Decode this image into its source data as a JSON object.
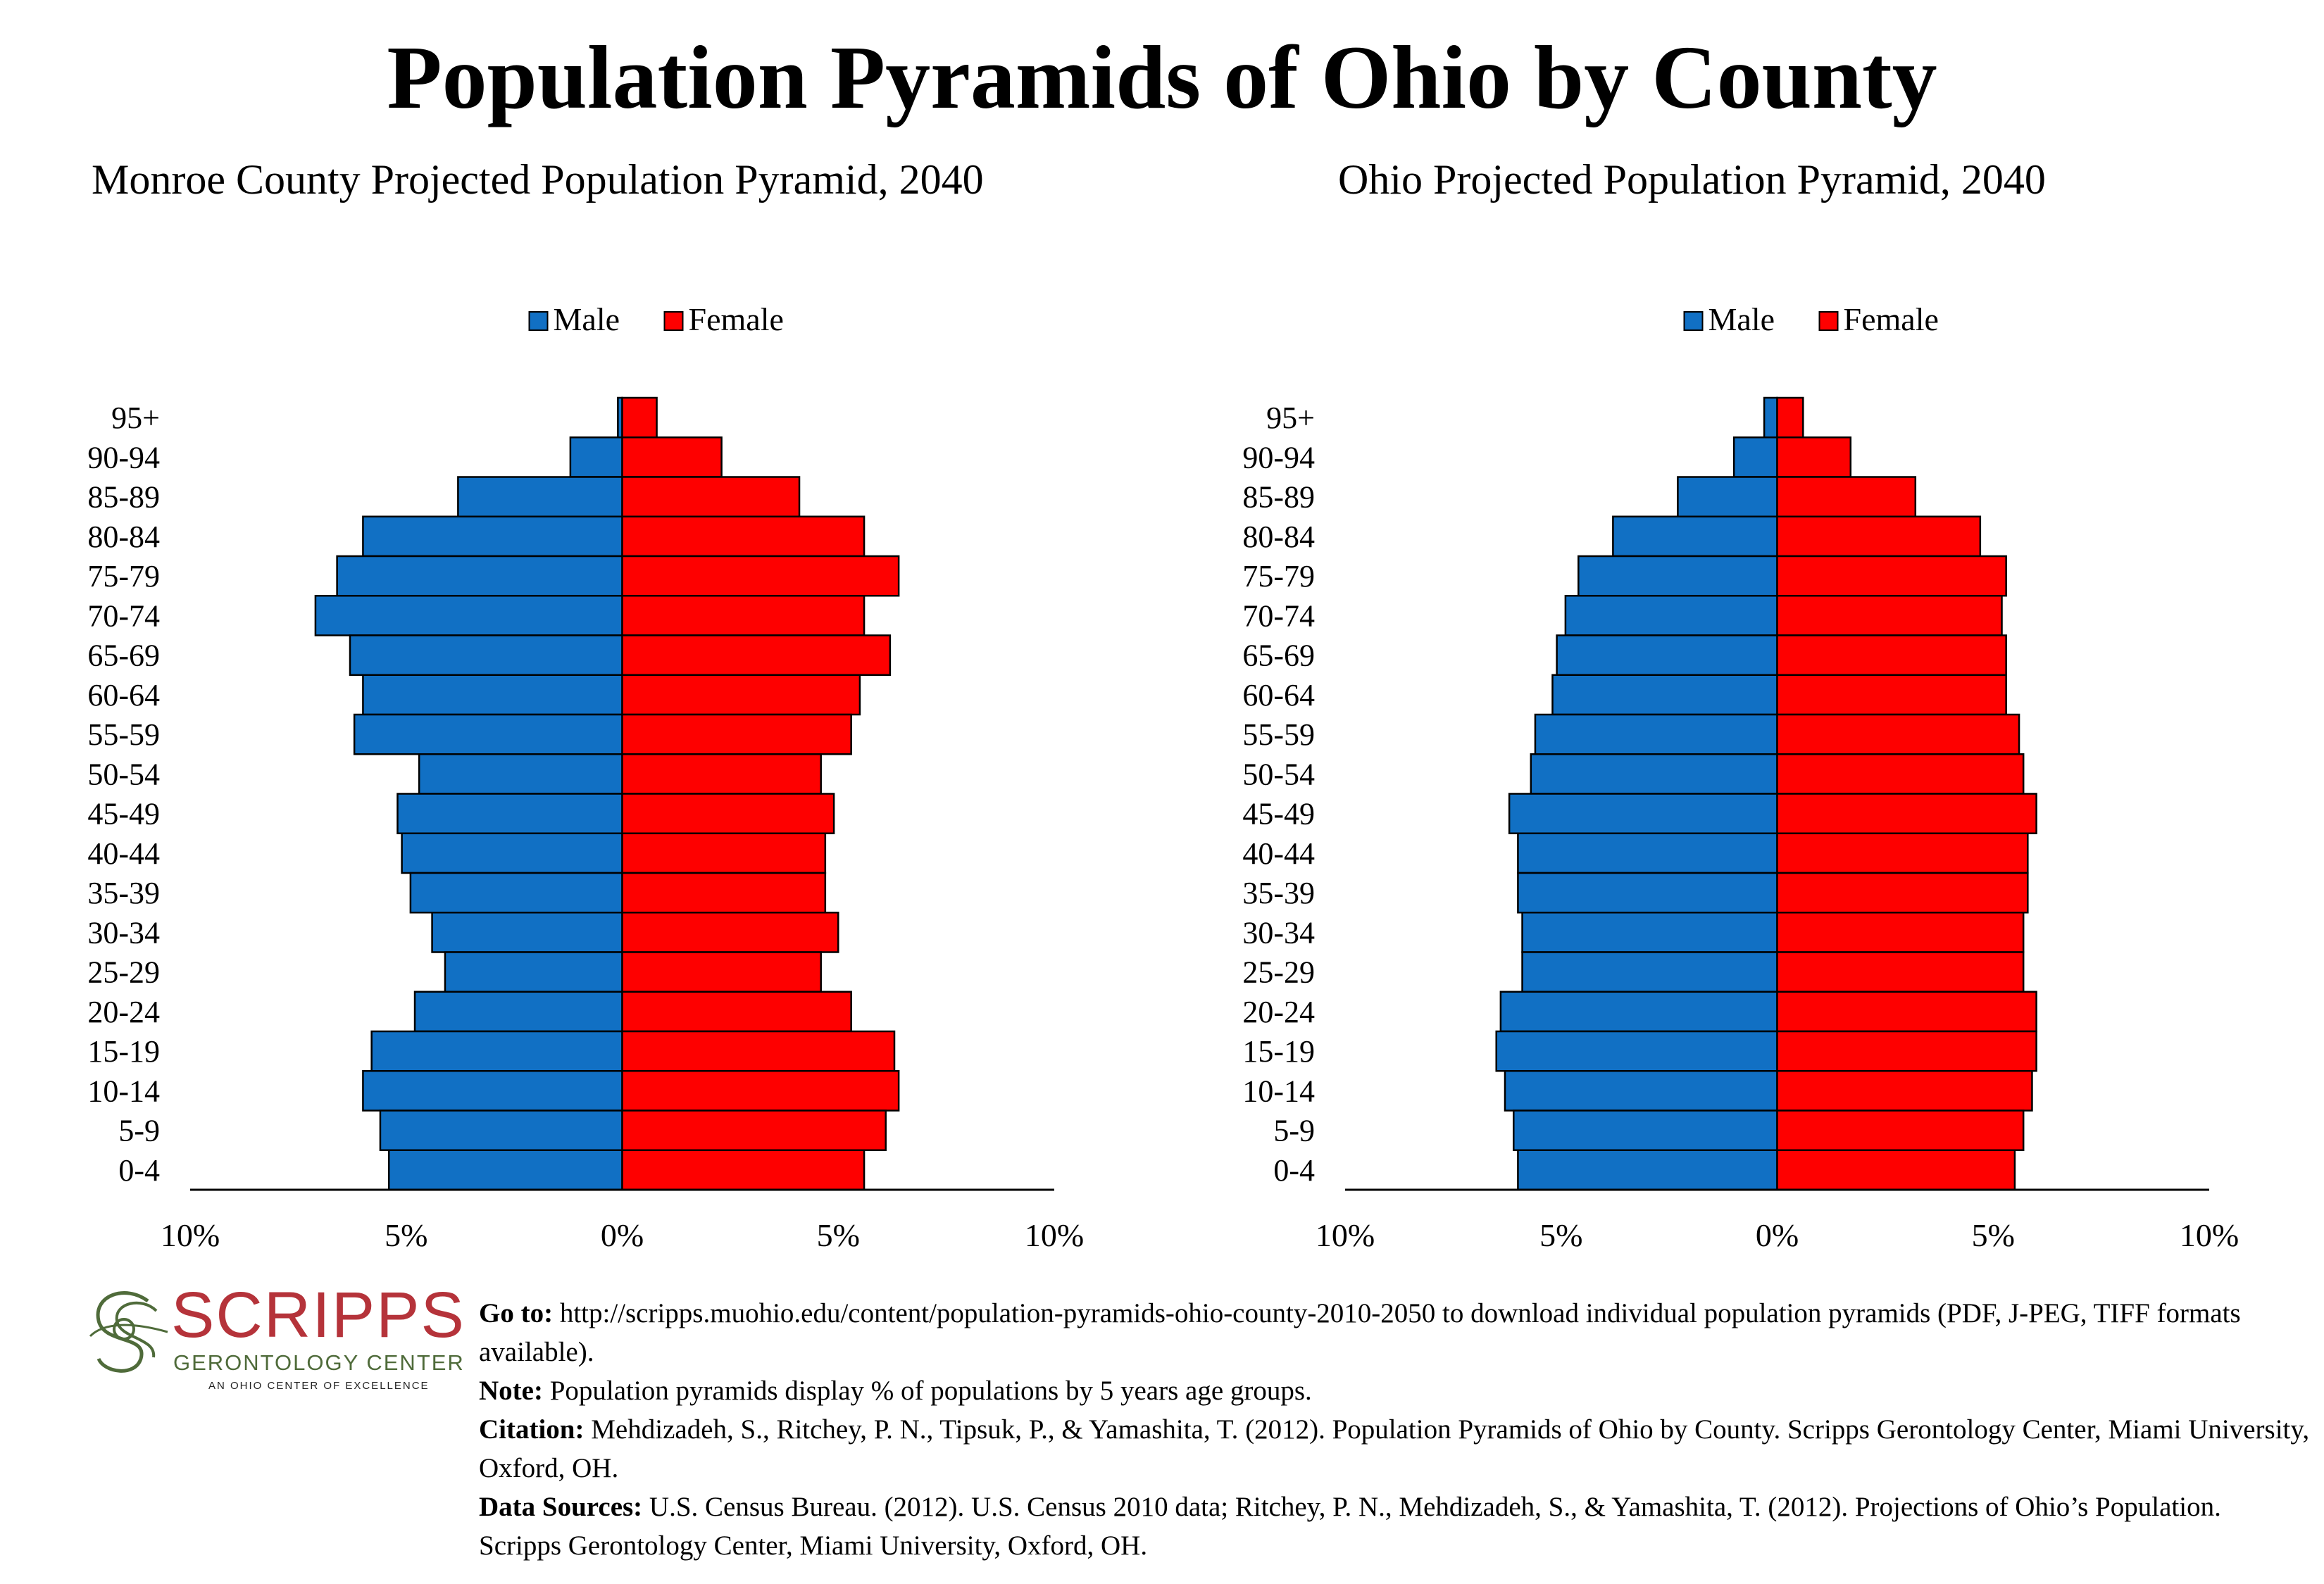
{
  "page": {
    "title": "Population Pyramids of Ohio by County"
  },
  "colors": {
    "male": "#1170c4",
    "female": "#fe0000",
    "logo_red": "#b5333a",
    "logo_green": "#4f6b3a"
  },
  "chart_data": [
    {
      "type": "bar",
      "orientation": "horizontal-pyramid",
      "title": "Monroe County Projected Population Pyramid, 2040",
      "categories": [
        "95+",
        "90-94",
        "85-89",
        "80-84",
        "75-79",
        "70-74",
        "65-69",
        "60-64",
        "55-59",
        "50-54",
        "45-49",
        "40-44",
        "35-39",
        "30-34",
        "25-29",
        "20-24",
        "15-19",
        "10-14",
        "5-9",
        "0-4"
      ],
      "series": [
        {
          "name": "Male",
          "values": [
            0.1,
            1.2,
            3.8,
            6.0,
            6.6,
            7.1,
            6.3,
            6.0,
            6.2,
            4.7,
            5.2,
            5.1,
            4.9,
            4.4,
            4.1,
            4.8,
            5.8,
            6.0,
            5.6,
            5.4
          ]
        },
        {
          "name": "Female",
          "values": [
            0.8,
            2.3,
            4.1,
            5.6,
            6.4,
            5.6,
            6.2,
            5.5,
            5.3,
            4.6,
            4.9,
            4.7,
            4.7,
            5.0,
            4.6,
            5.3,
            6.3,
            6.4,
            6.1,
            5.6
          ]
        }
      ],
      "x_ticks": [
        "10%",
        "5%",
        "0%",
        "5%",
        "10%"
      ],
      "xlim": [
        -10,
        10
      ],
      "legend": "top-center",
      "grid": false
    },
    {
      "type": "bar",
      "orientation": "horizontal-pyramid",
      "title": "Ohio Projected Population Pyramid, 2040",
      "categories": [
        "95+",
        "90-94",
        "85-89",
        "80-84",
        "75-79",
        "70-74",
        "65-69",
        "60-64",
        "55-59",
        "50-54",
        "45-49",
        "40-44",
        "35-39",
        "30-34",
        "25-29",
        "20-24",
        "15-19",
        "10-14",
        "5-9",
        "0-4"
      ],
      "series": [
        {
          "name": "Male",
          "values": [
            0.3,
            1.0,
            2.3,
            3.8,
            4.6,
            4.9,
            5.1,
            5.2,
            5.6,
            5.7,
            6.2,
            6.0,
            6.0,
            5.9,
            5.9,
            6.4,
            6.5,
            6.3,
            6.1,
            6.0
          ]
        },
        {
          "name": "Female",
          "values": [
            0.6,
            1.7,
            3.2,
            4.7,
            5.3,
            5.2,
            5.3,
            5.3,
            5.6,
            5.7,
            6.0,
            5.8,
            5.8,
            5.7,
            5.7,
            6.0,
            6.0,
            5.9,
            5.7,
            5.5
          ]
        }
      ],
      "x_ticks": [
        "10%",
        "5%",
        "0%",
        "5%",
        "10%"
      ],
      "xlim": [
        -10,
        10
      ],
      "legend": "top-center",
      "grid": false
    }
  ],
  "footer": {
    "logo": {
      "word": "SCRIPPS",
      "sub": "GERONTOLOGY CENTER",
      "tag": "AN OHIO CENTER OF EXCELLENCE"
    },
    "goto_label": "Go to:",
    "goto_text": " http://scripps.muohio.edu/content/population-pyramids-ohio-county-2010-2050 to download individual population pyramids (PDF, J-PEG, TIFF formats available).",
    "note_label": "Note:",
    "note_text": " Population pyramids display % of populations by 5 years age groups.",
    "citation_label": "Citation:",
    "citation_text": " Mehdizadeh, S., Ritchey, P. N., Tipsuk, P., & Yamashita, T. (2012). Population Pyramids of Ohio by County. Scripps Gerontology Center, Miami University, Oxford, OH.",
    "sources_label": "Data Sources:",
    "sources_text": " U.S. Census Bureau. (2012). U.S. Census 2010 data; Ritchey, P. N., Mehdizadeh, S., & Yamashita, T. (2012). Projections of Ohio’s Population. Scripps Gerontology Center, Miami University, Oxford, OH."
  }
}
